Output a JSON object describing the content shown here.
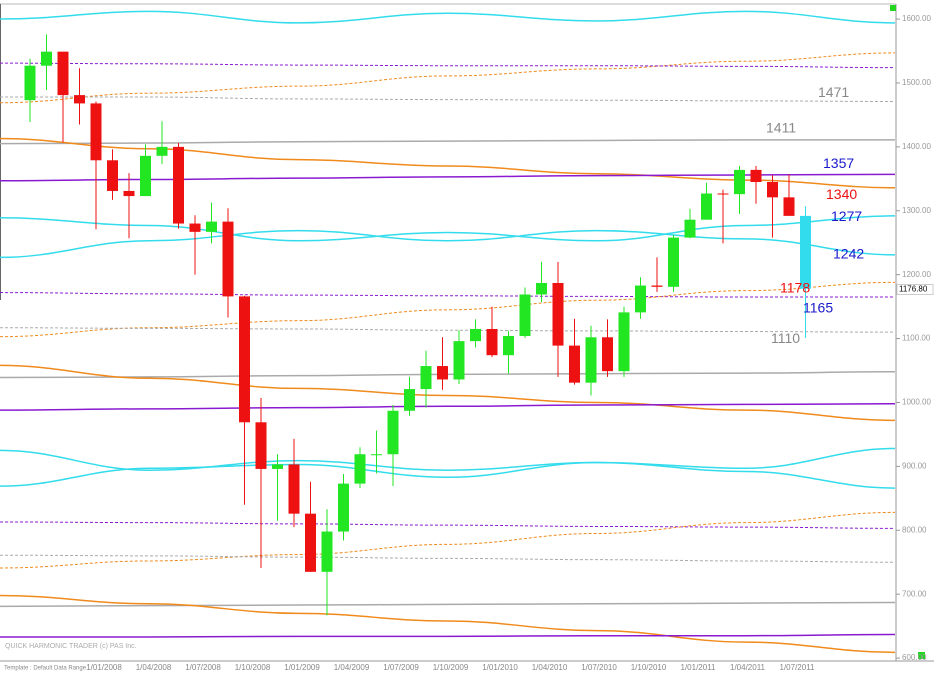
{
  "chart_data": {
    "type": "candlestick",
    "watermark": "QUICK HARMONIC TRADER (c) PAS Inc.",
    "footer": "Template : Default   Data Range",
    "ylim": [
      597,
      1622
    ],
    "yticks": [
      {
        "value": 600,
        "label": "600.00"
      },
      {
        "value": 700,
        "label": "700.00"
      },
      {
        "value": 800,
        "label": "800.00"
      },
      {
        "value": 900,
        "label": "900.00"
      },
      {
        "value": 1000,
        "label": "1000.00"
      },
      {
        "value": 1100,
        "label": "1100.00"
      },
      {
        "value": 1200,
        "label": "1200.00"
      },
      {
        "value": 1300,
        "label": "1300.00"
      },
      {
        "value": 1400,
        "label": "1400.00"
      },
      {
        "value": 1500,
        "label": "1500.00"
      },
      {
        "value": 1600,
        "label": "1600.00"
      }
    ],
    "xticks": [
      "1/01/2008",
      "1/04/2008",
      "1/07/2008",
      "1/10/2008",
      "1/01/2009",
      "1/04/2009",
      "1/07/2009",
      "1/10/2009",
      "1/01/2010",
      "1/04/2010",
      "1/07/2010",
      "1/10/2010",
      "1/01/2011",
      "1/04/2011",
      "1/07/2011"
    ],
    "colors": {
      "up": "#22e622",
      "down": "#ee1111",
      "last": "#33dcec"
    },
    "open": [
      1473,
      1527,
      1549,
      1481,
      1468,
      1379,
      1331,
      1323,
      1386,
      1400,
      1280,
      1267,
      1283,
      1166,
      969,
      896,
      903,
      826,
      735,
      798,
      873,
      919,
      919,
      987,
      1021,
      1057,
      1036,
      1096,
      1115,
      1074,
      1104,
      1169,
      1187,
      1089,
      1031,
      1102,
      1049,
      1141,
      1183,
      1181,
      1258,
      1286,
      1327,
      1326,
      1364,
      1345,
      1321,
      1292
    ],
    "high": [
      1538,
      1576,
      1545,
      1523,
      1471,
      1396,
      1359,
      1404,
      1440,
      1406,
      1293,
      1313,
      1304,
      1167,
      1007,
      919,
      943,
      876,
      833,
      888,
      930,
      956,
      996,
      1040,
      1081,
      1102,
      1113,
      1130,
      1150,
      1112,
      1180,
      1220,
      1220,
      1131,
      1120,
      1130,
      1150,
      1196,
      1227,
      1262,
      1303,
      1344,
      1333,
      1370,
      1370,
      1356,
      1357,
      1307
    ],
    "low": [
      1439,
      1489,
      1407,
      1435,
      1271,
      1317,
      1257,
      1323,
      1373,
      1272,
      1200,
      1249,
      1133,
      840,
      741,
      815,
      805,
      735,
      667,
      784,
      866,
      889,
      869,
      979,
      992,
      1020,
      1029,
      1086,
      1071,
      1045,
      1101,
      1157,
      1040,
      1028,
      1011,
      1040,
      1040,
      1131,
      1173,
      1173,
      1257,
      1289,
      1249,
      1295,
      1311,
      1258,
      1300,
      1101
    ],
    "close": [
      1527,
      1549,
      1481,
      1468,
      1379,
      1331,
      1323,
      1386,
      1400,
      1280,
      1267,
      1283,
      1166,
      969,
      896,
      903,
      826,
      735,
      798,
      873,
      919,
      919,
      987,
      1021,
      1057,
      1036,
      1096,
      1115,
      1074,
      1104,
      1169,
      1187,
      1089,
      1031,
      1102,
      1049,
      1141,
      1183,
      1181,
      1258,
      1286,
      1327,
      1326,
      1364,
      1345,
      1321,
      1292,
      1178
    ],
    "last_price": {
      "value": 1176.8,
      "label": "1176.80"
    },
    "levels": [
      {
        "value": 1471,
        "color": "#888888"
      },
      {
        "value": 1411,
        "color": "#888888"
      },
      {
        "value": 1357,
        "color": "#1a1acc"
      },
      {
        "value": 1340,
        "color": "#ee1111"
      },
      {
        "value": 1277,
        "color": "#1a1acc"
      },
      {
        "value": 1242,
        "color": "#1a1acc"
      },
      {
        "value": 1178,
        "color": "#ee1111"
      },
      {
        "value": 1165,
        "color": "#1a1acc"
      },
      {
        "value": 1110,
        "color": "#888888"
      }
    ],
    "bands": [
      {
        "color": "#33dcec",
        "dashed": false,
        "values": [
          1600,
          1612,
          1594,
          1609,
          1597,
          1612,
          1594
        ]
      },
      {
        "color": "#f08a1c",
        "dashed": true,
        "values": [
          1469,
          1484,
          1495,
          1511,
          1522,
          1534,
          1547
        ]
      },
      {
        "color": "#8a1ad0",
        "dashed": true,
        "values": [
          1531,
          1530,
          1528,
          1527,
          1527,
          1526,
          1524
        ]
      },
      {
        "color": "#aaaaaa",
        "dashed": true,
        "values": [
          1478,
          1478,
          1475,
          1474,
          1473,
          1472,
          1471
        ]
      },
      {
        "color": "#aaaaaa",
        "dashed": false,
        "values": [
          1405,
          1406,
          1408,
          1409,
          1410,
          1411,
          1411
        ]
      },
      {
        "color": "#f08a1c",
        "dashed": false,
        "values": [
          1413,
          1397,
          1380,
          1370,
          1358,
          1348,
          1336
        ]
      },
      {
        "color": "#8a1ad0",
        "dashed": false,
        "values": [
          1347,
          1349,
          1351,
          1353,
          1355,
          1356,
          1357
        ]
      },
      {
        "color": "#33dcec",
        "dashed": false,
        "values": [
          1289,
          1277,
          1253,
          1266,
          1253,
          1277,
          1292
        ]
      },
      {
        "color": "#33dcec",
        "dashed": false,
        "values": [
          1227,
          1253,
          1269,
          1253,
          1269,
          1256,
          1231
        ]
      },
      {
        "color": "#8a1ad0",
        "dashed": true,
        "values": [
          1172,
          1170,
          1168,
          1167,
          1166,
          1165,
          1165
        ]
      },
      {
        "color": "#f08a1c",
        "dashed": true,
        "values": [
          1103,
          1117,
          1128,
          1145,
          1160,
          1175,
          1188
        ]
      },
      {
        "color": "#aaaaaa",
        "dashed": true,
        "values": [
          1117,
          1116,
          1115,
          1113,
          1112,
          1111,
          1110
        ]
      },
      {
        "color": "#aaaaaa",
        "dashed": false,
        "values": [
          1039,
          1040,
          1042,
          1044,
          1045,
          1046,
          1048
        ]
      },
      {
        "color": "#f08a1c",
        "dashed": false,
        "values": [
          1058,
          1038,
          1022,
          1011,
          1000,
          988,
          972
        ]
      },
      {
        "color": "#8a1ad0",
        "dashed": false,
        "values": [
          988,
          990,
          992,
          994,
          996,
          997,
          998
        ]
      },
      {
        "color": "#33dcec",
        "dashed": false,
        "values": [
          925,
          894,
          909,
          894,
          906,
          897,
          928
        ]
      },
      {
        "color": "#33dcec",
        "dashed": false,
        "values": [
          869,
          897,
          903,
          883,
          906,
          892,
          866
        ]
      },
      {
        "color": "#8a1ad0",
        "dashed": true,
        "values": [
          813,
          812,
          810,
          808,
          806,
          805,
          803
        ]
      },
      {
        "color": "#f08a1c",
        "dashed": true,
        "values": [
          741,
          752,
          762,
          778,
          795,
          812,
          828
        ]
      },
      {
        "color": "#aaaaaa",
        "dashed": true,
        "values": [
          761,
          760,
          758,
          756,
          754,
          752,
          750
        ]
      },
      {
        "color": "#aaaaaa",
        "dashed": false,
        "values": [
          681,
          682,
          683,
          684,
          685,
          686,
          687
        ]
      },
      {
        "color": "#f08a1c",
        "dashed": false,
        "values": [
          698,
          685,
          670,
          658,
          643,
          625,
          609
        ]
      },
      {
        "color": "#8a1ad0",
        "dashed": false,
        "values": [
          633,
          633,
          634,
          634,
          635,
          635,
          637
        ]
      }
    ]
  }
}
